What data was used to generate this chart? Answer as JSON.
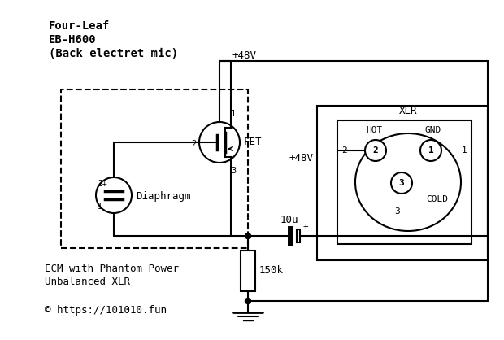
{
  "title_line1": "Four-Leaf",
  "title_line2": "EB-H600",
  "title_line3": "(Back electret mic)",
  "label_48v_top": "+48V",
  "label_48v_mid": "+48V",
  "label_fet": "FET",
  "label_diaphragm": "Diaphragm",
  "label_10u": "10u",
  "label_150k": "150k",
  "label_xlr": "XLR",
  "label_hot": "HOT",
  "label_gnd": "GND",
  "label_cold": "COLD",
  "label_ecm": "ECM with Phantom Power",
  "label_unbalanced": "Unbalanced XLR",
  "label_copyright": "© https://101010.fun",
  "bg_color": "#ffffff",
  "line_color": "#000000",
  "figsize": [
    6.2,
    4.18
  ],
  "dpi": 100
}
